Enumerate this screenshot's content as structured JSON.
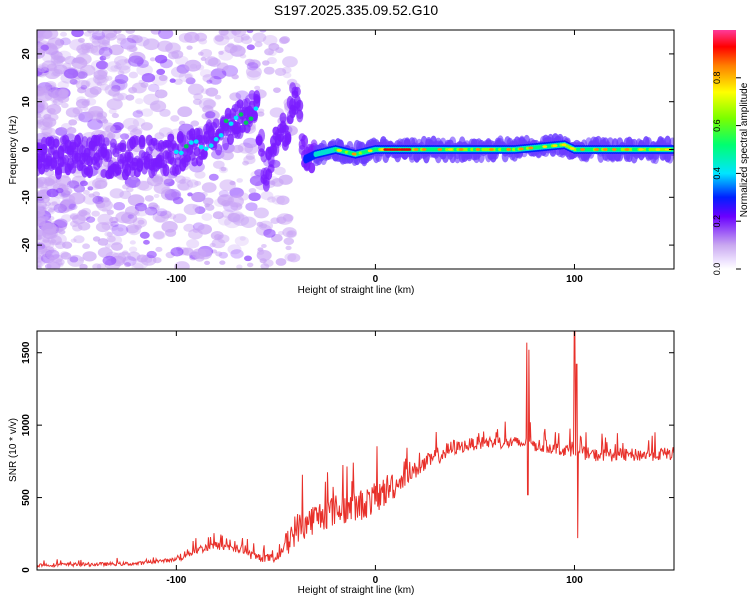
{
  "title": "S197.2025.335.09.52.G10",
  "chart_data": [
    {
      "type": "heatmap",
      "xlabel": "Height of straight line (km)",
      "ylabel": "Frequency (Hz)",
      "xlim": [
        -170,
        150
      ],
      "ylim": [
        -25,
        25
      ],
      "xticks": [
        -100,
        0,
        100
      ],
      "yticks": [
        -20,
        -10,
        0,
        10,
        20
      ],
      "colorbar": {
        "label": "Normalized spectral amplitude",
        "range": [
          0,
          1
        ],
        "ticks": [
          0.0,
          0.2,
          0.4,
          0.6,
          0.8
        ]
      },
      "ridge": [
        {
          "x": -170,
          "y": -2
        },
        {
          "x": -150,
          "y": -1
        },
        {
          "x": -130,
          "y": -2
        },
        {
          "x": -110,
          "y": -1
        },
        {
          "x": -100,
          "y": -1
        },
        {
          "x": -90,
          "y": 0
        },
        {
          "x": -80,
          "y": 3
        },
        {
          "x": -70,
          "y": 6
        },
        {
          "x": -60,
          "y": 9
        },
        {
          "x": -55,
          "y": -6
        },
        {
          "x": -50,
          "y": 1
        },
        {
          "x": -45,
          "y": 4
        },
        {
          "x": -40,
          "y": 12
        },
        {
          "x": -35,
          "y": -2
        },
        {
          "x": -30,
          "y": -1
        },
        {
          "x": -20,
          "y": 0
        },
        {
          "x": -10,
          "y": -1
        },
        {
          "x": 0,
          "y": 0
        },
        {
          "x": 20,
          "y": 0
        },
        {
          "x": 50,
          "y": 0
        },
        {
          "x": 70,
          "y": 0
        },
        {
          "x": 95,
          "y": 1
        },
        {
          "x": 100,
          "y": 0
        },
        {
          "x": 150,
          "y": 0
        }
      ]
    },
    {
      "type": "line",
      "xlabel": "Height of straight line (km)",
      "ylabel": "SNR (10 * v/v)",
      "xlim": [
        -170,
        150
      ],
      "ylim": [
        0,
        1650
      ],
      "xticks": [
        -100,
        0,
        100
      ],
      "yticks": [
        0,
        500,
        1000,
        1500
      ],
      "series_color": "#e8302a",
      "trend": [
        {
          "x": -170,
          "y": 30
        },
        {
          "x": -120,
          "y": 40
        },
        {
          "x": -100,
          "y": 70
        },
        {
          "x": -90,
          "y": 130
        },
        {
          "x": -80,
          "y": 160
        },
        {
          "x": -70,
          "y": 140
        },
        {
          "x": -60,
          "y": 80
        },
        {
          "x": -50,
          "y": 70
        },
        {
          "x": -40,
          "y": 250
        },
        {
          "x": -30,
          "y": 330
        },
        {
          "x": -20,
          "y": 380
        },
        {
          "x": -10,
          "y": 400
        },
        {
          "x": 0,
          "y": 460
        },
        {
          "x": 10,
          "y": 570
        },
        {
          "x": 20,
          "y": 670
        },
        {
          "x": 30,
          "y": 760
        },
        {
          "x": 40,
          "y": 830
        },
        {
          "x": 50,
          "y": 860
        },
        {
          "x": 60,
          "y": 870
        },
        {
          "x": 75,
          "y": 860
        },
        {
          "x": 90,
          "y": 830
        },
        {
          "x": 110,
          "y": 780
        },
        {
          "x": 130,
          "y": 780
        },
        {
          "x": 150,
          "y": 790
        }
      ],
      "spikes": [
        {
          "x": 76,
          "y": 1570
        },
        {
          "x": 77,
          "y": 1520
        },
        {
          "x": 76.5,
          "y": 520
        },
        {
          "x": 100,
          "y": 1650
        },
        {
          "x": 101,
          "y": 1420
        },
        {
          "x": 101.5,
          "y": 220
        }
      ]
    }
  ]
}
